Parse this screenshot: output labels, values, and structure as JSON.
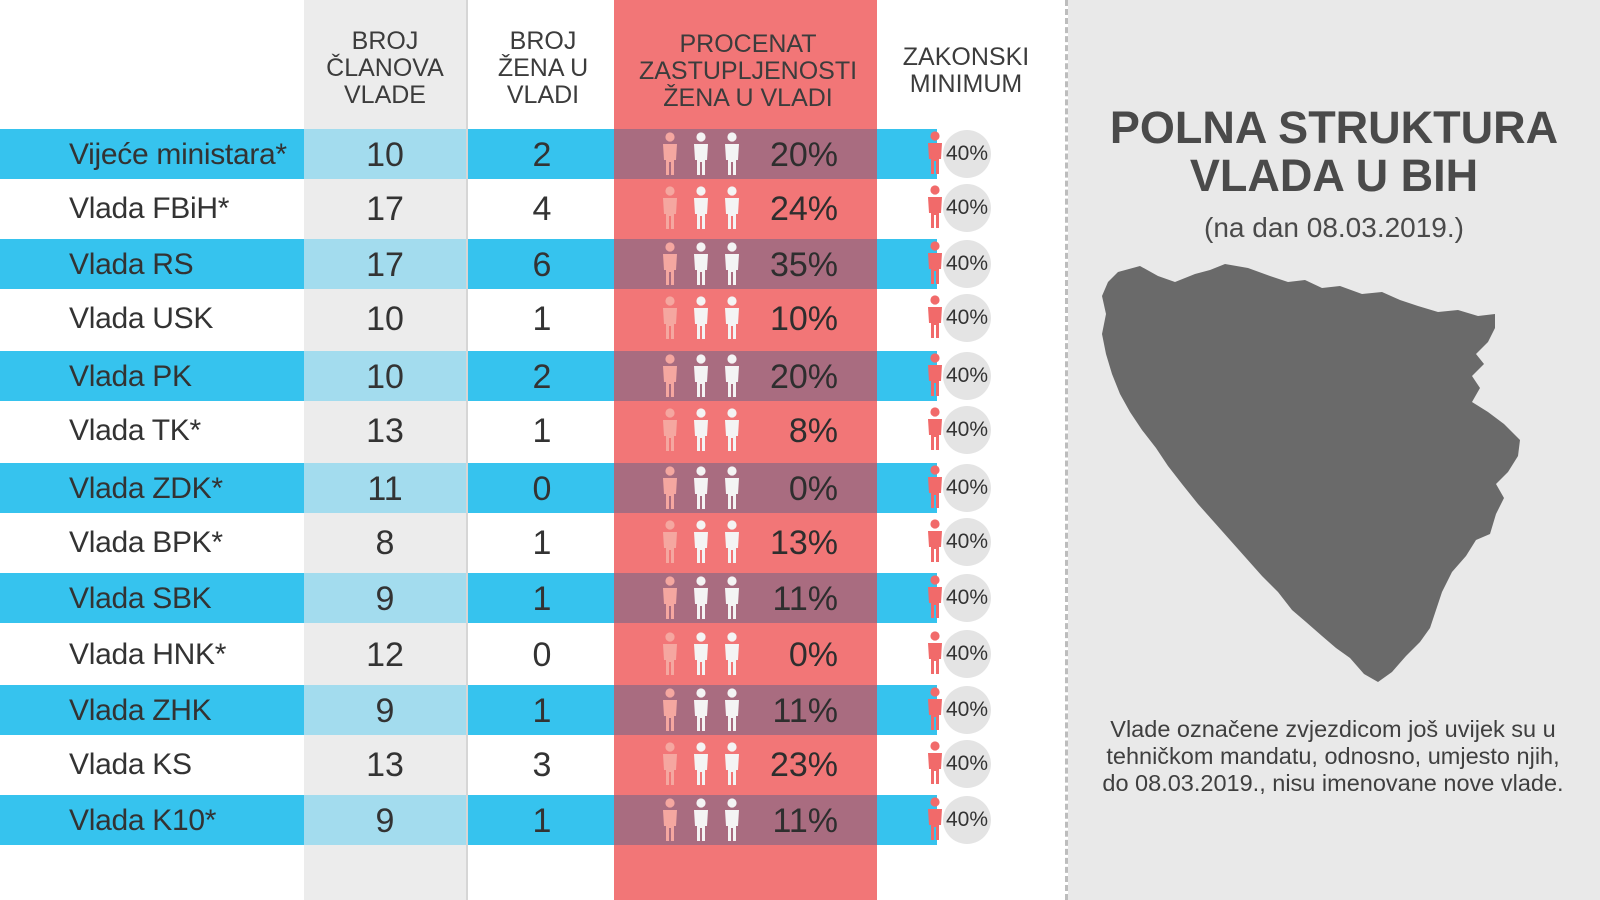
{
  "colors": {
    "band_blue": "#36c3ee",
    "band_blue_light": "#a3dcee",
    "column_grey": "#ececec",
    "column_pink": "#f27677",
    "band_pink_dark": "#a96c80",
    "figure_light_pink": "#f5a7a0",
    "figure_white": "#f4f4f4",
    "figure_min": "#f16a6a",
    "map_grey": "#6a6a6a",
    "panel_grey": "#e9e9e9"
  },
  "headers": {
    "members": "BROJ ČLANOVA VLADE",
    "women": "BROJ ŽENA U VLADI",
    "percent": "PROCENAT ZASTUPLJENOSTI ŽENA U VLADI",
    "minimum": "ZAKONSKI MINIMUM"
  },
  "side": {
    "title_line1": "POLNA STRUKTURA",
    "title_line2": "VLADA U BIH",
    "date": "(na dan 08.03.2019.)",
    "note": "Vlade označene zvjezdicom još uvijek su u tehničkom mandatu, odnosno, umjesto njih, do 08.03.2019., nisu imenovane nove vlade.",
    "map_icon": "bosnia-herzegovina-map-icon"
  },
  "chart_data": {
    "type": "table",
    "title": "POLNA STRUKTURA VLADA U BIH",
    "subtitle": "(na dan 08.03.2019.)",
    "columns": [
      "BROJ ČLANOVA VLADE",
      "BROJ ŽENA U VLADI",
      "PROCENAT ZASTUPLJENOSTI ŽENA U VLADI",
      "ZAKONSKI MINIMUM"
    ],
    "rows": [
      {
        "name": "Vijeće ministara*",
        "members": "10",
        "women": "2",
        "percent": "20%",
        "minimum": "40%"
      },
      {
        "name": "Vlada FBiH*",
        "members": "17",
        "women": "4",
        "percent": "24%",
        "minimum": "40%"
      },
      {
        "name": "Vlada RS",
        "members": "17",
        "women": "6",
        "percent": "35%",
        "minimum": "40%"
      },
      {
        "name": "Vlada USK",
        "members": "10",
        "women": "1",
        "percent": "10%",
        "minimum": "40%"
      },
      {
        "name": "Vlada PK",
        "members": "10",
        "women": "2",
        "percent": "20%",
        "minimum": "40%"
      },
      {
        "name": "Vlada TK*",
        "members": "13",
        "women": "1",
        "percent": "8%",
        "minimum": "40%"
      },
      {
        "name": "Vlada ZDK*",
        "members": "11",
        "women": "0",
        "percent": "0%",
        "minimum": "40%"
      },
      {
        "name": "Vlada BPK*",
        "members": "8",
        "women": "1",
        "percent": "13%",
        "minimum": "40%"
      },
      {
        "name": "Vlada SBK",
        "members": "9",
        "women": "1",
        "percent": "11%",
        "minimum": "40%"
      },
      {
        "name": "Vlada HNK*",
        "members": "12",
        "women": "0",
        "percent": "0%",
        "minimum": "40%"
      },
      {
        "name": "Vlada ZHK",
        "members": "9",
        "women": "1",
        "percent": "11%",
        "minimum": "40%"
      },
      {
        "name": "Vlada KS",
        "members": "13",
        "women": "3",
        "percent": "23%",
        "minimum": "40%"
      },
      {
        "name": "Vlada K10*",
        "members": "9",
        "women": "1",
        "percent": "11%",
        "minimum": "40%"
      }
    ]
  }
}
